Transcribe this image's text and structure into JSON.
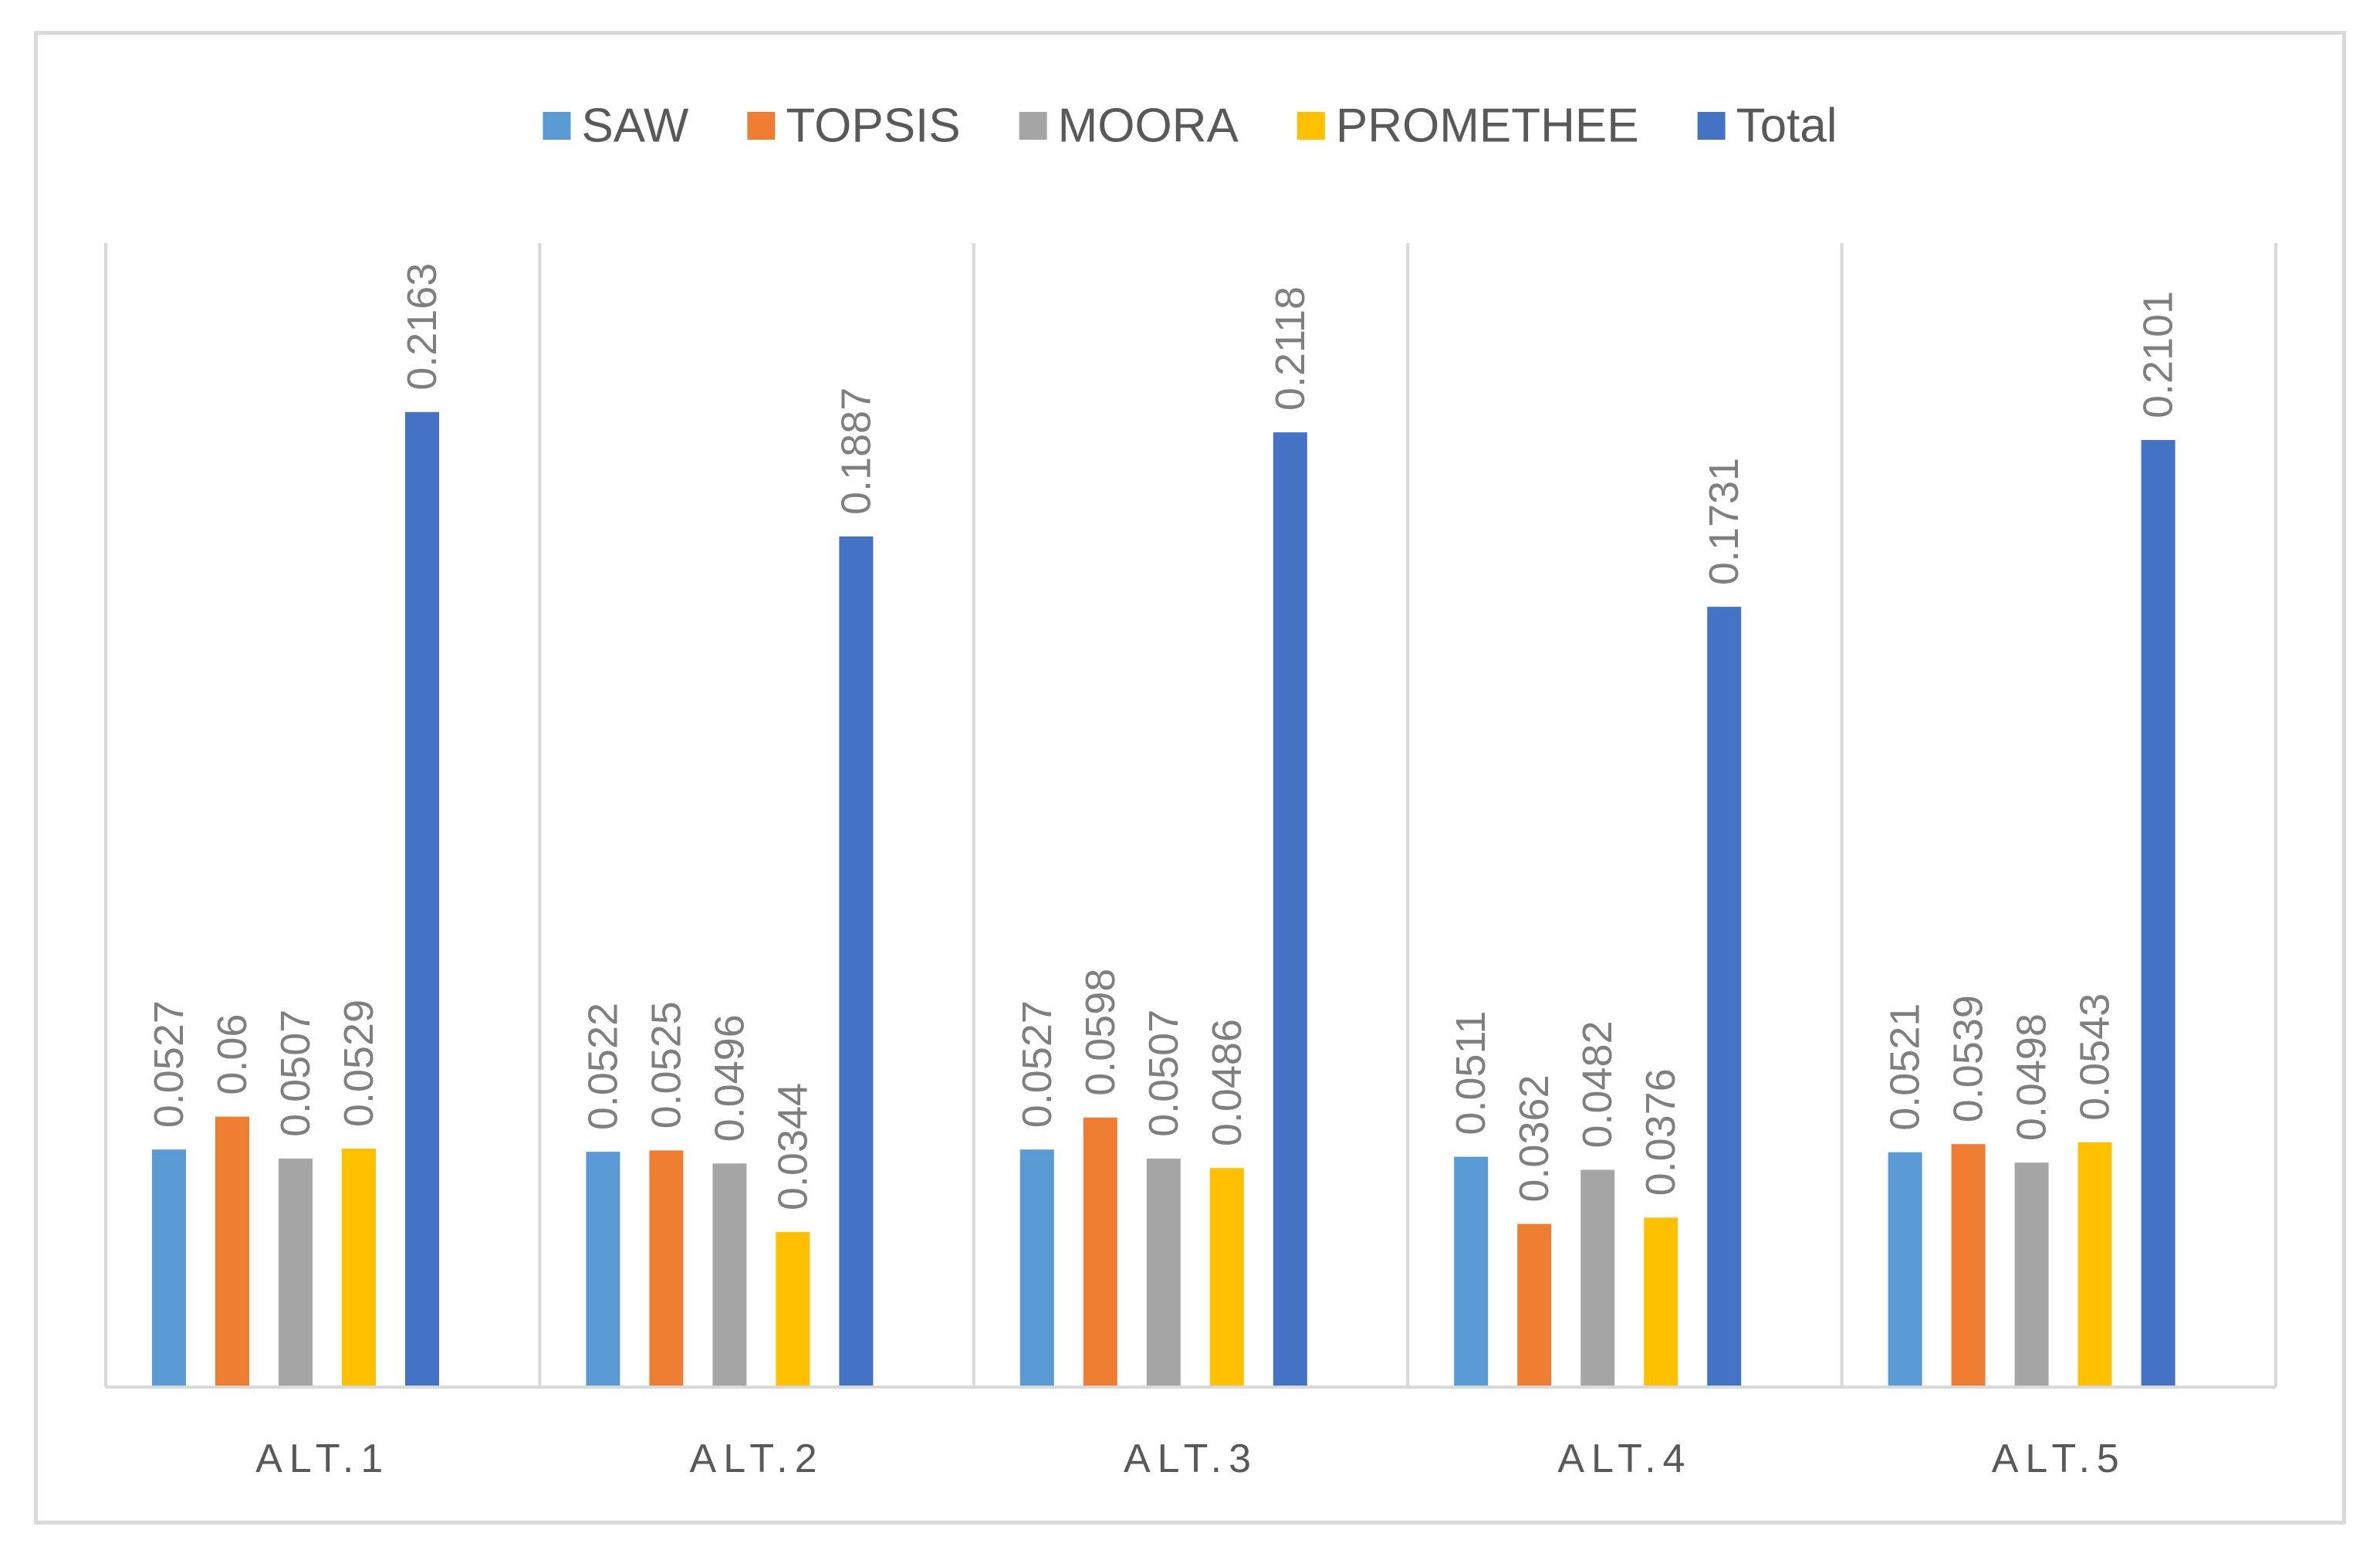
{
  "chart_data": {
    "type": "bar",
    "title": "",
    "xlabel": "",
    "ylabel": "",
    "ylim": [
      0,
      0.23
    ],
    "grid": "vertical category separators",
    "legend_position": "top",
    "categories": [
      "ALT.1",
      "ALT.2",
      "ALT.3",
      "ALT.4",
      "ALT.5"
    ],
    "series": [
      {
        "name": "SAW",
        "color": "#5b9bd5",
        "values": [
          0.0527,
          0.0522,
          0.0527,
          0.0511,
          0.0521
        ],
        "labels": [
          "0.0527",
          "0.0522",
          "0.0527",
          "0.0511",
          "0.0521"
        ]
      },
      {
        "name": "TOPSIS",
        "color": "#ed7d31",
        "values": [
          0.06,
          0.0525,
          0.0598,
          0.0362,
          0.0539
        ],
        "labels": [
          "0.06",
          "0.0525",
          "0.0598",
          "0.0362",
          "0.0539"
        ]
      },
      {
        "name": "MOORA",
        "color": "#a5a5a5",
        "values": [
          0.0507,
          0.0496,
          0.0507,
          0.0482,
          0.0498
        ],
        "labels": [
          "0.0507",
          "0.0496",
          "0.0507",
          "0.0482",
          "0.0498"
        ]
      },
      {
        "name": "PROMETHEE",
        "color": "#ffc000",
        "values": [
          0.0529,
          0.0344,
          0.0486,
          0.0376,
          0.0543
        ],
        "labels": [
          "0.0529",
          "0.0344",
          "0.0486",
          "0.0376",
          "0.0543"
        ]
      },
      {
        "name": "Total",
        "color": "#4472c4",
        "values": [
          0.2163,
          0.1887,
          0.2118,
          0.1731,
          0.2101
        ],
        "labels": [
          "0.2163",
          "0.1887",
          "0.2118",
          "0.1731",
          "0.2101"
        ]
      }
    ]
  }
}
